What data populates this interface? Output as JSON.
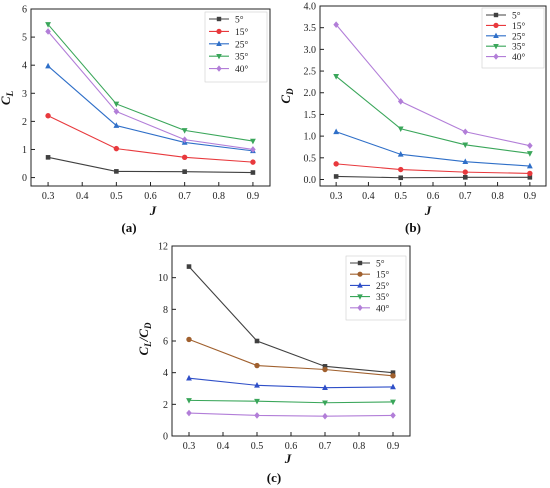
{
  "chart_data": [
    {
      "panel_label": "(a)",
      "type": "line",
      "ylabel_main": "C",
      "ylabel_sub": "L",
      "xlabel": "J",
      "x": [
        0.3,
        0.5,
        0.7,
        0.9
      ],
      "xlim": [
        0.25,
        0.95
      ],
      "ylim": [
        -0.3,
        6
      ],
      "xticks": [
        "0.3",
        "0.4",
        "0.5",
        "0.6",
        "0.7",
        "0.8",
        "0.9"
      ],
      "yticks": [
        "0",
        "1",
        "2",
        "3",
        "4",
        "5",
        "6"
      ],
      "legend_position": "top-right",
      "series": [
        {
          "name": "5°",
          "color": "#404040",
          "marker": "square",
          "values": [
            0.72,
            0.22,
            0.21,
            0.18
          ]
        },
        {
          "name": "15°",
          "color": "#e8393d",
          "marker": "circle",
          "values": [
            2.2,
            1.03,
            0.72,
            0.55
          ]
        },
        {
          "name": "25°",
          "color": "#2f6fc8",
          "marker": "triangle",
          "values": [
            3.97,
            1.85,
            1.25,
            0.95
          ]
        },
        {
          "name": "35°",
          "color": "#3aa65a",
          "marker": "tri-down",
          "values": [
            5.45,
            2.62,
            1.68,
            1.3
          ]
        },
        {
          "name": "40°",
          "color": "#b27ed8",
          "marker": "diamond",
          "values": [
            5.2,
            2.35,
            1.35,
            1.0
          ]
        }
      ]
    },
    {
      "panel_label": "(b)",
      "type": "line",
      "ylabel_main": "C",
      "ylabel_sub": "D",
      "xlabel": "J",
      "x": [
        0.3,
        0.5,
        0.7,
        0.9
      ],
      "xlim": [
        0.25,
        0.95
      ],
      "ylim": [
        -0.15,
        4.0
      ],
      "xticks": [
        "0.3",
        "0.4",
        "0.5",
        "0.6",
        "0.7",
        "0.8",
        "0.9"
      ],
      "yticks": [
        "0.0",
        "0.5",
        "1.0",
        "1.5",
        "2.0",
        "2.5",
        "3.0",
        "3.5",
        "4.0"
      ],
      "legend_position": "top-right",
      "series": [
        {
          "name": "5°",
          "color": "#404040",
          "marker": "square",
          "values": [
            0.07,
            0.04,
            0.05,
            0.05
          ]
        },
        {
          "name": "15°",
          "color": "#e8393d",
          "marker": "circle",
          "values": [
            0.36,
            0.23,
            0.17,
            0.14
          ]
        },
        {
          "name": "25°",
          "color": "#2f6fc8",
          "marker": "triangle",
          "values": [
            1.1,
            0.58,
            0.41,
            0.31
          ]
        },
        {
          "name": "35°",
          "color": "#3aa65a",
          "marker": "tri-down",
          "values": [
            2.38,
            1.17,
            0.8,
            0.6
          ]
        },
        {
          "name": "40°",
          "color": "#b27ed8",
          "marker": "diamond",
          "values": [
            3.57,
            1.8,
            1.1,
            0.78
          ]
        }
      ]
    },
    {
      "panel_label": "(c)",
      "type": "line",
      "ylabel_main": "C",
      "ylabel_sub": "L",
      "ylabel_mid": "/C",
      "ylabel_sub2": "D",
      "xlabel": "J",
      "x": [
        0.3,
        0.5,
        0.7,
        0.9
      ],
      "xlim": [
        0.25,
        0.95
      ],
      "ylim": [
        0,
        12
      ],
      "xticks": [
        "0.3",
        "0.4",
        "0.5",
        "0.6",
        "0.7",
        "0.8",
        "0.9"
      ],
      "yticks": [
        "0",
        "2",
        "4",
        "6",
        "8",
        "10",
        "12"
      ],
      "legend_position": "top-right",
      "series": [
        {
          "name": "5°",
          "color": "#404040",
          "marker": "square",
          "values": [
            10.7,
            6.0,
            4.4,
            4.0
          ]
        },
        {
          "name": "15°",
          "color": "#a0602e",
          "marker": "circle",
          "values": [
            6.1,
            4.45,
            4.2,
            3.8
          ]
        },
        {
          "name": "25°",
          "color": "#2f4fc8",
          "marker": "triangle",
          "values": [
            3.65,
            3.2,
            3.05,
            3.1
          ]
        },
        {
          "name": "35°",
          "color": "#3aa65a",
          "marker": "tri-down",
          "values": [
            2.25,
            2.2,
            2.1,
            2.15
          ]
        },
        {
          "name": "40°",
          "color": "#b27ed8",
          "marker": "diamond",
          "values": [
            1.45,
            1.3,
            1.25,
            1.3
          ]
        }
      ]
    }
  ]
}
